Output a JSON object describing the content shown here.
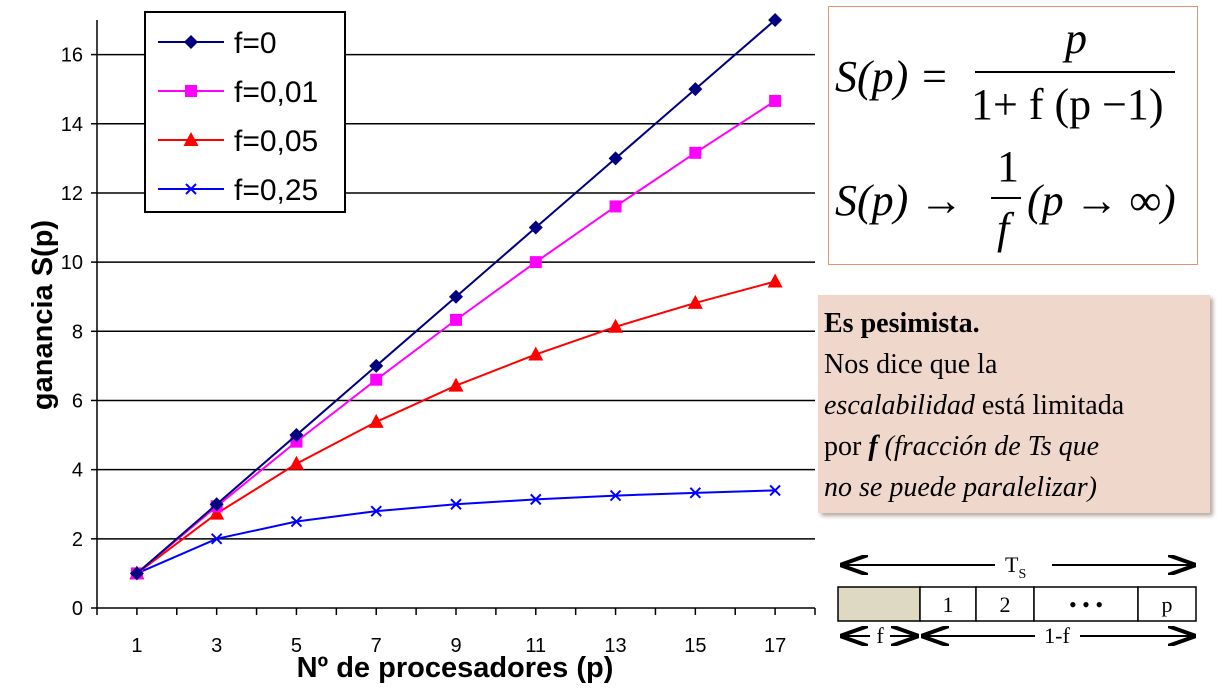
{
  "chart_data": {
    "type": "line",
    "xlabel": "Nº de procesadores (p)",
    "ylabel": "ganancia S(p)",
    "x": [
      1,
      3,
      5,
      7,
      9,
      11,
      13,
      15,
      17
    ],
    "xlim": [
      0,
      18
    ],
    "ylim": [
      0,
      17
    ],
    "yticks": [
      0,
      2,
      4,
      6,
      8,
      10,
      12,
      14,
      16
    ],
    "grid": "horizontal",
    "legend_position": "top-left",
    "series": [
      {
        "name": "f=0",
        "color": "#000080",
        "marker": "diamond",
        "values": [
          1,
          3,
          5,
          7,
          9,
          11,
          13,
          15,
          17
        ]
      },
      {
        "name": "f=0,01",
        "color": "#ff00ff",
        "marker": "square",
        "values": [
          1,
          2.94,
          4.81,
          6.6,
          8.33,
          10.0,
          11.61,
          13.16,
          14.66
        ]
      },
      {
        "name": "f=0,05",
        "color": "#ff0000",
        "marker": "triangle",
        "values": [
          1,
          2.73,
          4.17,
          5.38,
          6.43,
          7.33,
          8.13,
          8.82,
          9.44
        ]
      },
      {
        "name": "f=0,25",
        "color": "#0000ff",
        "marker": "x",
        "values": [
          1,
          2.0,
          2.5,
          2.8,
          3.0,
          3.14,
          3.25,
          3.33,
          3.4
        ]
      }
    ]
  },
  "formula": {
    "line1_lhs": "S(p) =",
    "line1_num": "p",
    "line1_den": "1+ f (p −1)",
    "line2_lhs": "S(p) →",
    "line2_num": "1",
    "line2_den": "f",
    "line2_rhs": "(p → ∞)"
  },
  "note": {
    "title": "Es pesimista.",
    "text1": "Nos dice que la",
    "text2_it": "escalabilidad",
    "text2_rest": " está limitada",
    "text3_pre": "por ",
    "text3_f": "f",
    "text3_it": " (fracción de Ts que",
    "text4_it": "no se puede paralelizar)"
  },
  "diagram": {
    "top_label": "T",
    "top_label_sub": "S",
    "cells": [
      "1",
      "2",
      "• • •",
      "p"
    ],
    "left_label": "f",
    "right_label": "1-f",
    "serial_fill": "#ddd9c3"
  }
}
